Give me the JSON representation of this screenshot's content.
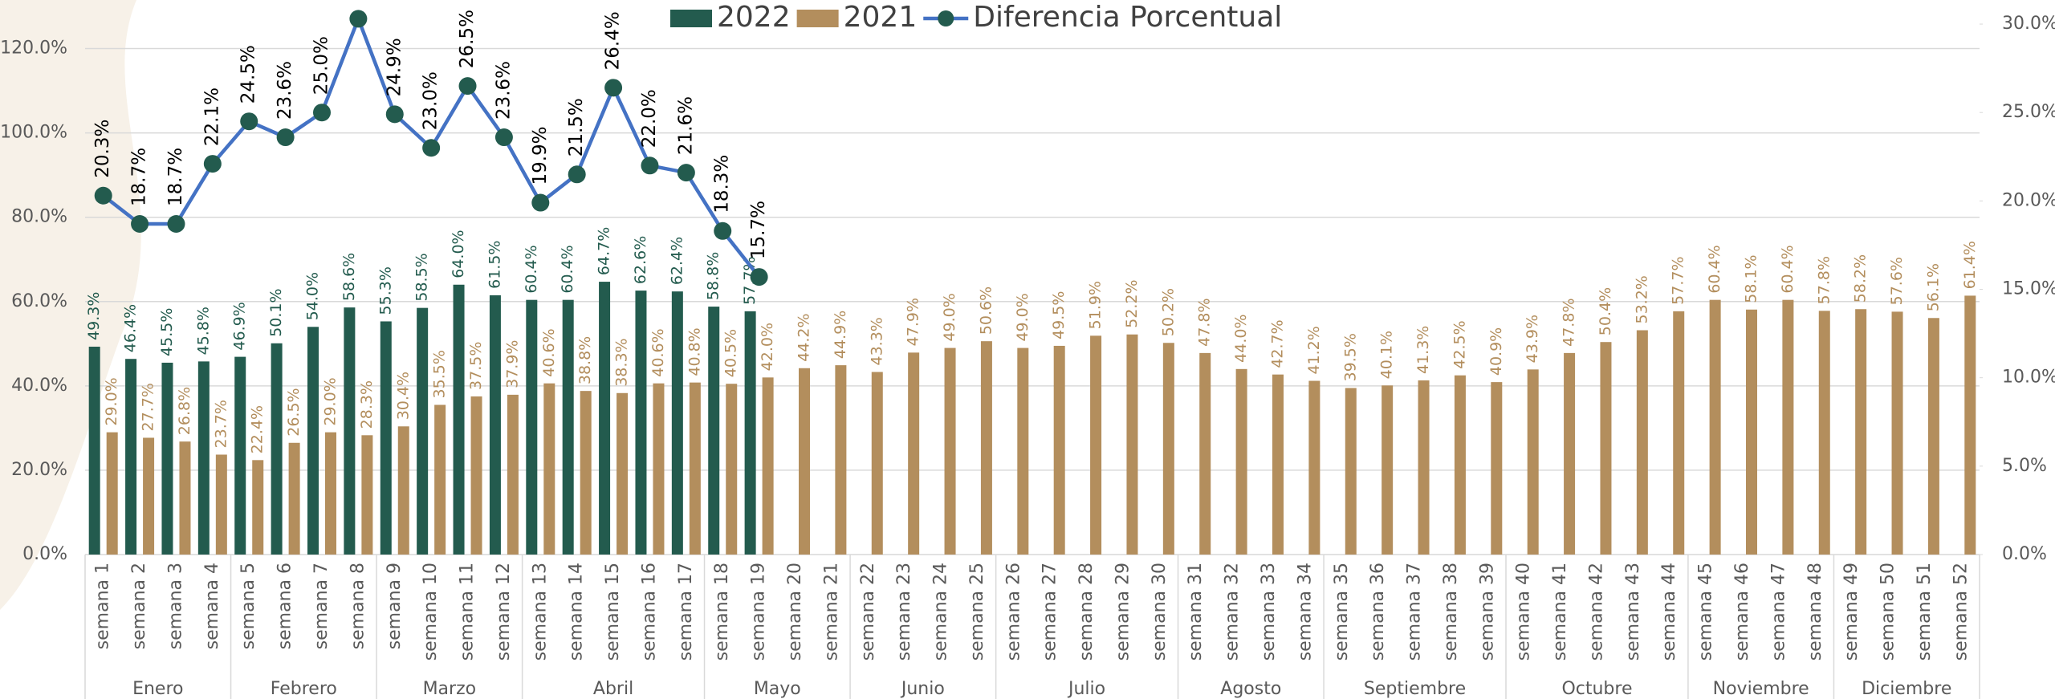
{
  "chart_data": {
    "type": "bar",
    "categories": [
      "semana 1",
      "semana 2",
      "semana 3",
      "semana 4",
      "semana 5",
      "semana 6",
      "semana 7",
      "semana 8",
      "semana 9",
      "semana 10",
      "semana 11",
      "semana 12",
      "semana 13",
      "semana 14",
      "semana 15",
      "semana 16",
      "semana 17",
      "semana 18",
      "semana 19",
      "semana 20",
      "semana 21",
      "semana 22",
      "semana 23",
      "semana 24",
      "semana 25",
      "semana 26",
      "semana 27",
      "semana 28",
      "semana 29",
      "semana 30",
      "semana 31",
      "semana 32",
      "semana 33",
      "semana 34",
      "semana 35",
      "semana 36",
      "semana 37",
      "semana 38",
      "semana 39",
      "semana 40",
      "semana 41",
      "semana 42",
      "semana 43",
      "semana 44",
      "semana 45",
      "semana 46",
      "semana 47",
      "semana 48",
      "semana 49",
      "semana 50",
      "semana 51",
      "semana 52"
    ],
    "groups": [
      {
        "label": "Enero",
        "count": 4
      },
      {
        "label": "Febrero",
        "count": 4
      },
      {
        "label": "Marzo",
        "count": 4
      },
      {
        "label": "Abril",
        "count": 5
      },
      {
        "label": "Mayo",
        "count": 4
      },
      {
        "label": "Junio",
        "count": 4
      },
      {
        "label": "Julio",
        "count": 5
      },
      {
        "label": "Agosto",
        "count": 4
      },
      {
        "label": "Septiembre",
        "count": 5
      },
      {
        "label": "Octubre",
        "count": 5
      },
      {
        "label": "Noviembre",
        "count": 4
      },
      {
        "label": "Diciembre",
        "count": 4
      }
    ],
    "series": [
      {
        "name": "2022",
        "type": "bar",
        "color": "#235b4e",
        "values": [
          49.3,
          46.4,
          45.5,
          45.8,
          46.9,
          50.1,
          54.0,
          58.6,
          55.3,
          58.5,
          64.0,
          61.5,
          60.4,
          60.4,
          64.7,
          62.6,
          62.4,
          58.8,
          57.7,
          null,
          null,
          null,
          null,
          null,
          null,
          null,
          null,
          null,
          null,
          null,
          null,
          null,
          null,
          null,
          null,
          null,
          null,
          null,
          null,
          null,
          null,
          null,
          null,
          null,
          null,
          null,
          null,
          null,
          null,
          null,
          null,
          null
        ],
        "value_labels": [
          "49.3%",
          "46.4%",
          "45.5%",
          "45.8%",
          "46.9%",
          "50.1%",
          "54.0%",
          "58.6%",
          "55.3%",
          "58.5%",
          "64.0%",
          "61.5%",
          "60.4%",
          "60.4%",
          "64.7%",
          "62.6%",
          "62.4%",
          "58.8%",
          "57.7%",
          null,
          null,
          null,
          null,
          null,
          null,
          null,
          null,
          null,
          null,
          null,
          null,
          null,
          null,
          null,
          null,
          null,
          null,
          null,
          null,
          null,
          null,
          null,
          null,
          null,
          null,
          null,
          null,
          null,
          null,
          null,
          null,
          null
        ]
      },
      {
        "name": "2021",
        "type": "bar",
        "color": "#b38e5d",
        "values": [
          29.0,
          27.7,
          26.8,
          23.7,
          22.4,
          26.5,
          29.0,
          28.3,
          30.4,
          35.5,
          37.5,
          37.9,
          40.6,
          38.8,
          38.3,
          40.6,
          40.8,
          40.5,
          42.0,
          44.2,
          44.9,
          43.3,
          47.9,
          49.0,
          50.6,
          49.0,
          49.5,
          51.9,
          52.2,
          50.2,
          47.8,
          44.0,
          42.7,
          41.2,
          39.5,
          40.1,
          41.3,
          42.5,
          40.9,
          43.9,
          47.8,
          50.4,
          53.2,
          57.7,
          60.4,
          58.1,
          60.4,
          57.8,
          58.2,
          57.6,
          56.1,
          61.4
        ],
        "value_labels": [
          "29.0%",
          "27.7%",
          "26.8%",
          "23.7%",
          "22.4%",
          "26.5%",
          "29.0%",
          "28.3%",
          "30.4%",
          "35.5%",
          "37.5%",
          "37.9%",
          "40.6%",
          "38.8%",
          "38.3%",
          "40.6%",
          "40.8%",
          "40.5%",
          "42.0%",
          "44.2%",
          "44.9%",
          "43.3%",
          "47.9%",
          "49.0%",
          "50.6%",
          "49.0%",
          "49.5%",
          "51.9%",
          "52.2%",
          "50.2%",
          "47.8%",
          "44.0%",
          "42.7%",
          "41.2%",
          "39.5%",
          "40.1%",
          "41.3%",
          "42.5%",
          "40.9%",
          "43.9%",
          "47.8%",
          "50.4%",
          "53.2%",
          "57.7%",
          "60.4%",
          "58.1%",
          "60.4%",
          "57.8%",
          "58.2%",
          "57.6%",
          "56.1%",
          "61.4%"
        ]
      },
      {
        "name": "Diferencia Porcentual",
        "type": "line",
        "axis": "y2",
        "color": "#4472c4",
        "marker_color": "#235b4e",
        "values": [
          20.3,
          18.7,
          18.7,
          22.1,
          24.5,
          23.6,
          25.0,
          30.3,
          24.9,
          23.0,
          26.5,
          23.6,
          19.9,
          21.5,
          26.4,
          22.0,
          21.6,
          18.3,
          15.7,
          null,
          null,
          null,
          null,
          null,
          null,
          null,
          null,
          null,
          null,
          null,
          null,
          null,
          null,
          null,
          null,
          null,
          null,
          null,
          null,
          null,
          null,
          null,
          null,
          null,
          null,
          null,
          null,
          null,
          null,
          null,
          null,
          null
        ],
        "value_labels": [
          "20.3%",
          "18.7%",
          "18.7%",
          "22.1%",
          "24.5%",
          "23.6%",
          "25.0%",
          null,
          "24.9%",
          "23.0%",
          "26.5%",
          "23.6%",
          "19.9%",
          "21.5%",
          "26.4%",
          "22.0%",
          "21.6%",
          "18.3%",
          "15.7%",
          null,
          null,
          null,
          null,
          null,
          null,
          null,
          null,
          null,
          null,
          null,
          null,
          null,
          null,
          null,
          null,
          null,
          null,
          null,
          null,
          null,
          null,
          null,
          null,
          null,
          null,
          null,
          null,
          null,
          null,
          null,
          null,
          null
        ]
      }
    ],
    "ylim": [
      0,
      130
    ],
    "yticks": [
      {
        "value": 0,
        "label": "0.0%"
      },
      {
        "value": 20,
        "label": "20.0%"
      },
      {
        "value": 40,
        "label": "40.0%"
      },
      {
        "value": 60,
        "label": "60.0%"
      },
      {
        "value": 80,
        "label": "80.0%"
      },
      {
        "value": 100,
        "label": "100.0%"
      },
      {
        "value": 120,
        "label": "120.0%"
      }
    ],
    "y2lim": [
      0,
      31
    ],
    "y2ticks": [
      {
        "value": 0,
        "label": "0.0%"
      },
      {
        "value": 5,
        "label": "5.0%"
      },
      {
        "value": 10,
        "label": "10.0%"
      },
      {
        "value": 15,
        "label": "15.0%"
      },
      {
        "value": 20,
        "label": "20.0%"
      },
      {
        "value": 25,
        "label": "25.0%"
      },
      {
        "value": 30,
        "label": "30.0%"
      }
    ],
    "grid": true,
    "legend": "top"
  }
}
